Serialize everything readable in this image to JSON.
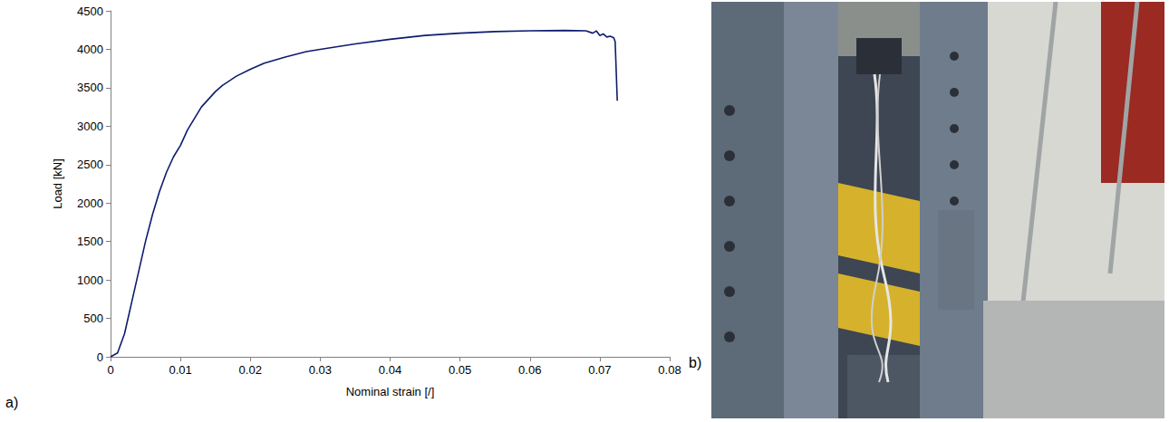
{
  "chart_data": {
    "type": "line",
    "xlabel": "Nominal strain [/]",
    "ylabel": "Load [kN]",
    "x": [
      0,
      0.001,
      0.002,
      0.003,
      0.004,
      0.005,
      0.006,
      0.007,
      0.008,
      0.009,
      0.01,
      0.011,
      0.012,
      0.013,
      0.014,
      0.015,
      0.016,
      0.018,
      0.02,
      0.022,
      0.025,
      0.028,
      0.03,
      0.035,
      0.04,
      0.045,
      0.05,
      0.055,
      0.06,
      0.065,
      0.068,
      0.069,
      0.0695,
      0.07,
      0.0705,
      0.071,
      0.0715,
      0.072,
      0.0722,
      0.0725
    ],
    "values": [
      0,
      50,
      300,
      700,
      1100,
      1500,
      1850,
      2150,
      2400,
      2600,
      2750,
      2950,
      3100,
      3250,
      3350,
      3450,
      3530,
      3650,
      3740,
      3820,
      3900,
      3970,
      4000,
      4070,
      4130,
      4180,
      4210,
      4230,
      4240,
      4245,
      4240,
      4210,
      4240,
      4180,
      4200,
      4160,
      4170,
      4150,
      4100,
      3330
    ],
    "color": "#0d1b6e",
    "xlim": [
      0,
      0.08
    ],
    "ylim": [
      0,
      4500
    ],
    "xticks": [
      0,
      0.01,
      0.02,
      0.03,
      0.04,
      0.05,
      0.06,
      0.07,
      0.08
    ],
    "yticks": [
      0,
      500,
      1000,
      1500,
      2000,
      2500,
      3000,
      3500,
      4000,
      4500
    ],
    "grid": false,
    "annotations": [
      "a)",
      "b)"
    ]
  }
}
